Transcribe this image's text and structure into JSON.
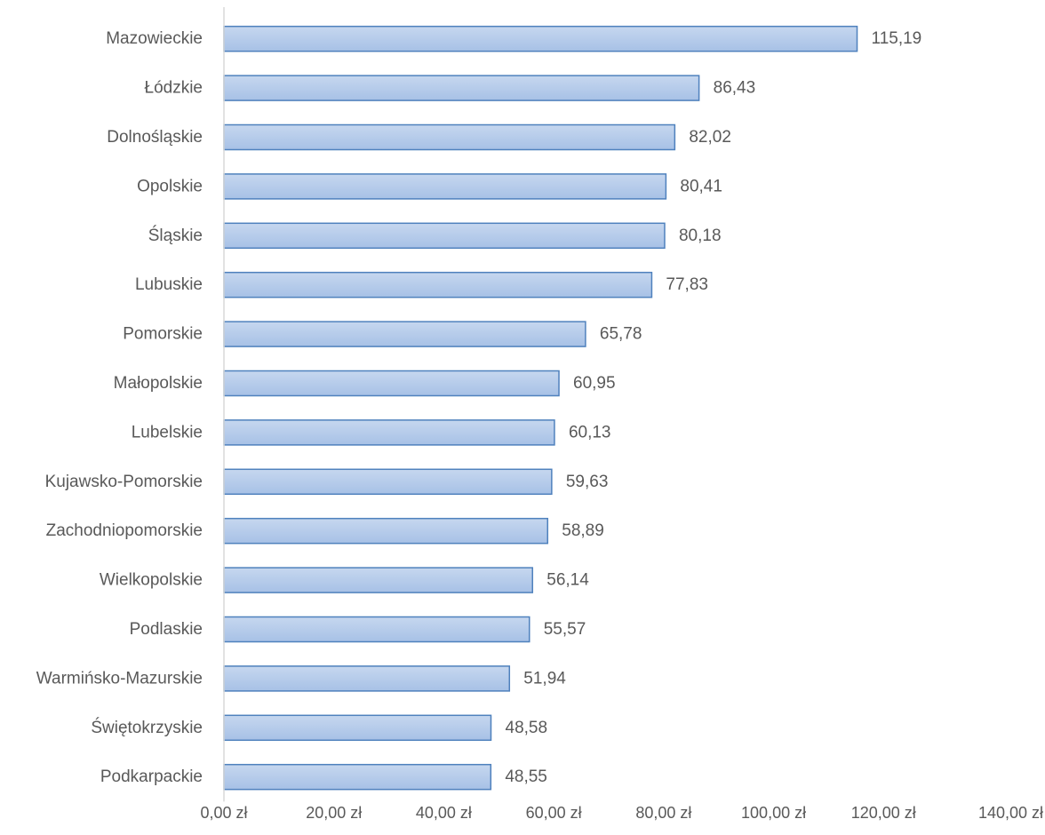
{
  "chart_data": {
    "type": "bar",
    "orientation": "horizontal",
    "title": "",
    "xlabel": "",
    "ylabel": "",
    "xlim": [
      0,
      140
    ],
    "grid": false,
    "legend": "none",
    "bar_color": "#a7c1e6",
    "bar_color_light": "#c6d7ef",
    "bar_border_color": "#4f81bd",
    "text_color": "#595959",
    "axis_color": "#d9d9d9",
    "categories": [
      "Mazowieckie",
      "Łódzkie",
      "Dolnośląskie",
      "Opolskie",
      "Śląskie",
      "Lubuskie",
      "Pomorskie",
      "Małopolskie",
      "Lubelskie",
      "Kujawsko-Pomorskie",
      "Zachodniopomorskie",
      "Wielkopolskie",
      "Podlaskie",
      "Warmińsko-Mazurskie",
      "Świętokrzyskie",
      "Podkarpackie"
    ],
    "values": [
      115.19,
      86.43,
      82.02,
      80.41,
      80.18,
      77.83,
      65.78,
      60.95,
      60.13,
      59.63,
      58.89,
      56.14,
      55.57,
      51.94,
      48.58,
      48.55
    ],
    "value_labels": [
      "115,19",
      "86,43",
      "82,02",
      "80,41",
      "80,18",
      "77,83",
      "65,78",
      "60,95",
      "60,13",
      "59,63",
      "58,89",
      "56,14",
      "55,57",
      "51,94",
      "48,58",
      "48,55"
    ],
    "x_ticks": [
      0,
      20,
      40,
      60,
      80,
      100,
      120,
      140
    ],
    "x_tick_labels": [
      "0,00 zł",
      "20,00 zł",
      "40,00 zł",
      "60,00 zł",
      "80,00 zł",
      "100,00 zł",
      "120,00 zł",
      "140,00 zł"
    ]
  }
}
